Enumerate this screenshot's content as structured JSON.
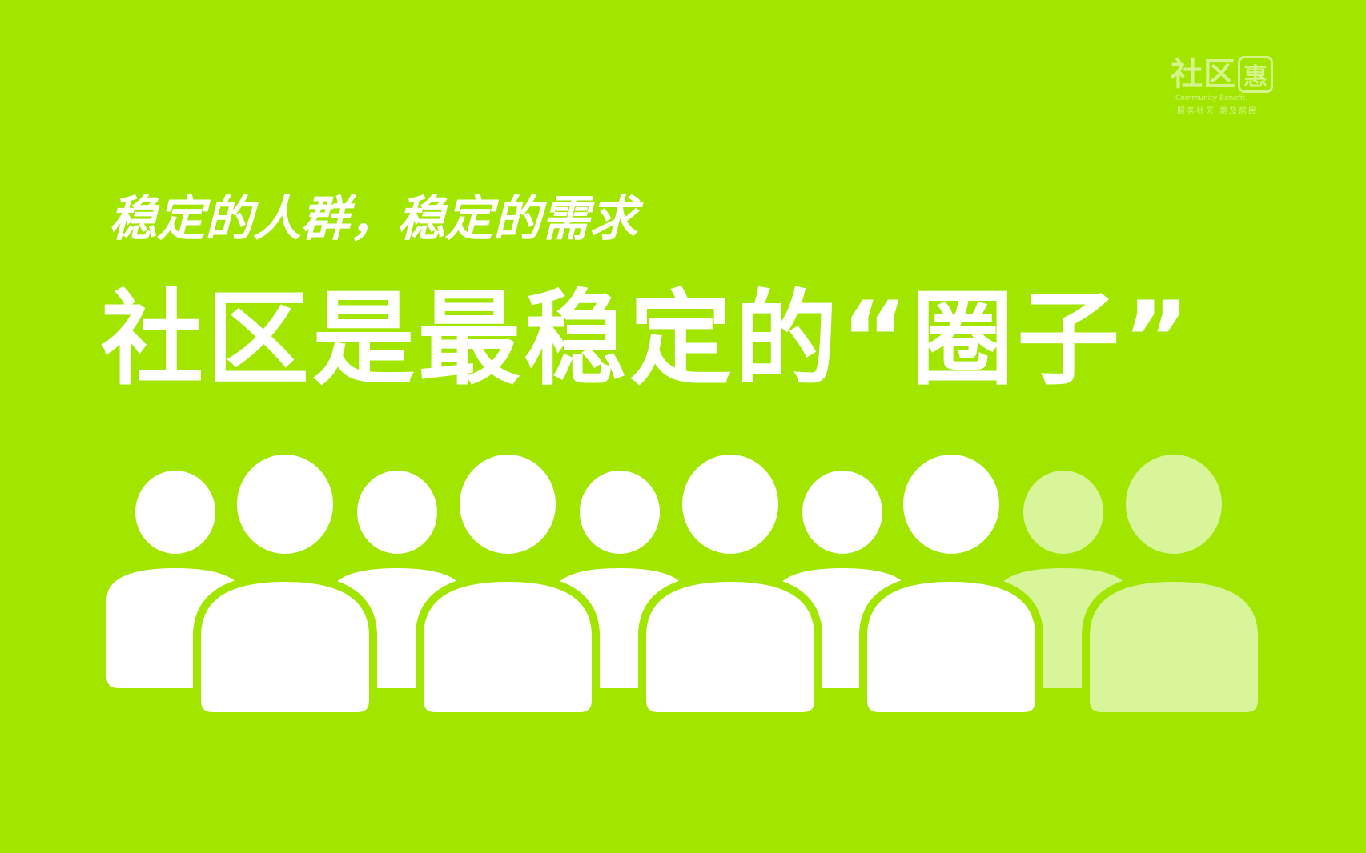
{
  "logo": {
    "main_text": "社区",
    "icon_char": "惠",
    "english": "Community Benefit",
    "slogan": "服务社区 惠及居民"
  },
  "subtitle": "稳定的人群，稳定的需求",
  "title": "社区是最稳定的“圈子”",
  "colors": {
    "background": "#a2e600",
    "figure": "#ffffff",
    "figure_faded": "#d9f59a"
  },
  "illustration": {
    "icon": "crowd-of-people-icon",
    "figure_count": 10,
    "faded_figures": 2
  }
}
